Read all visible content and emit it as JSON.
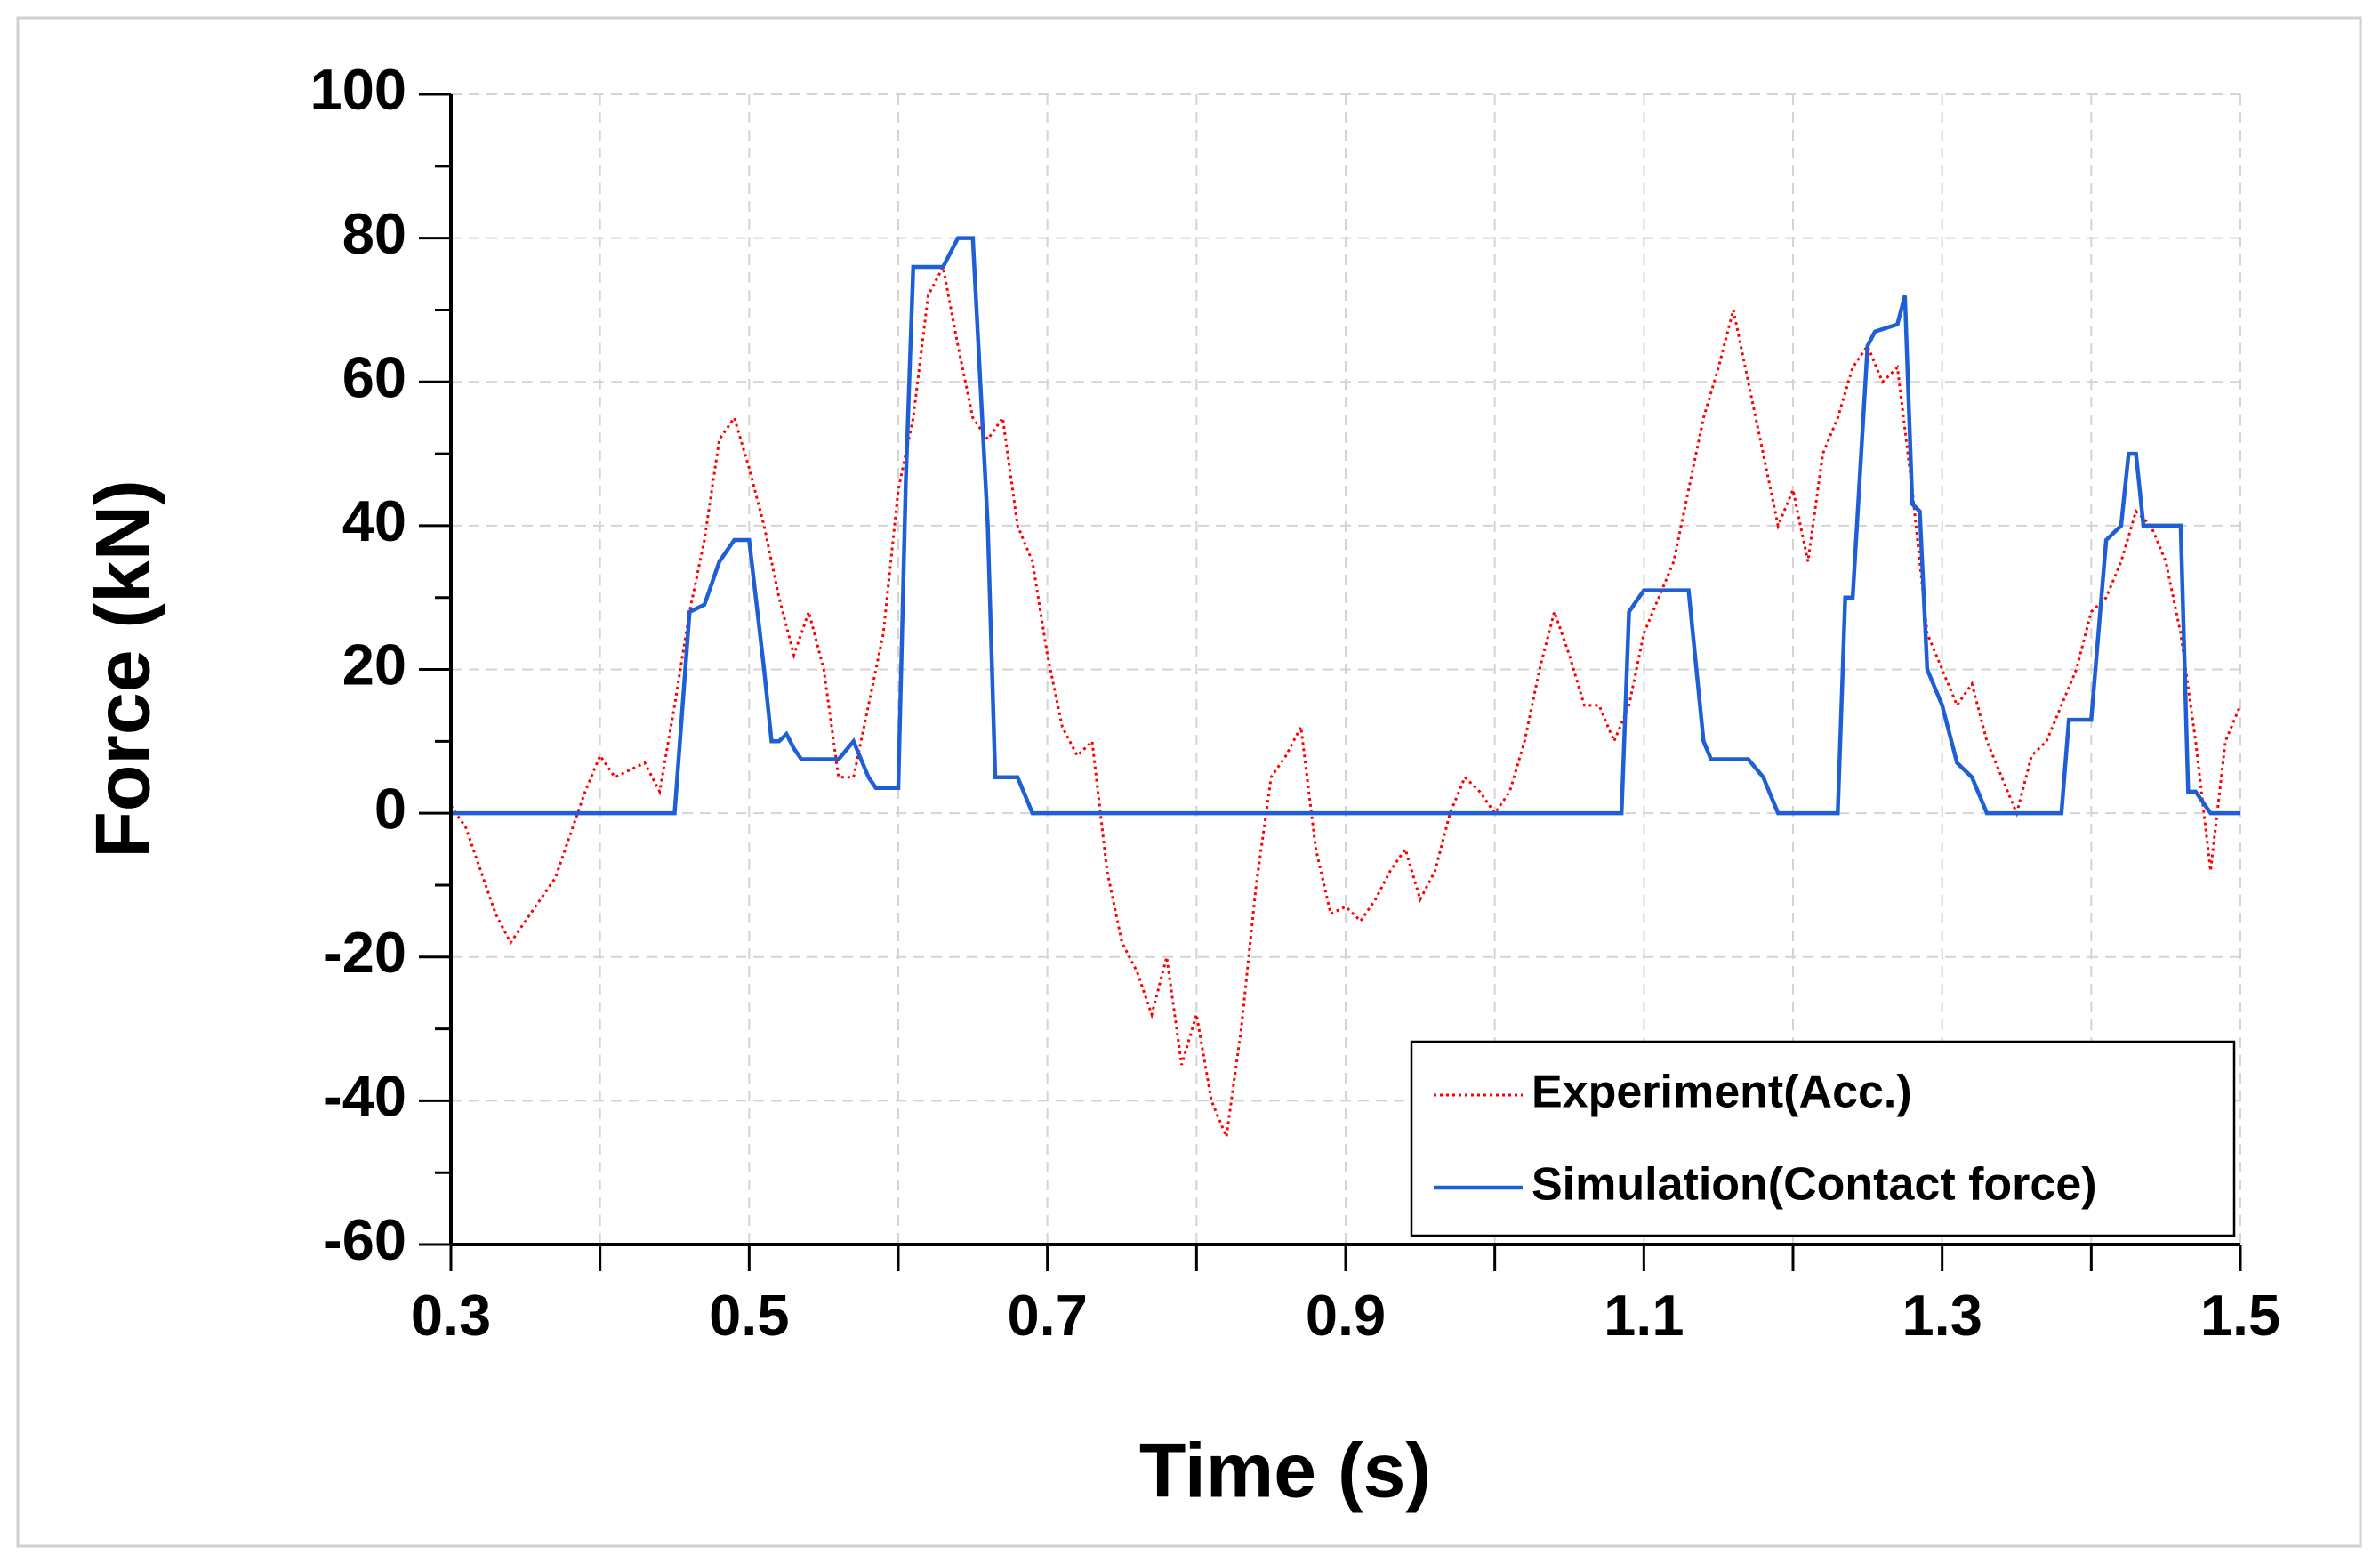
{
  "chart_data": {
    "type": "line",
    "xlabel": "Time (s)",
    "ylabel": "Force (kN)",
    "xlim": [
      0.3,
      1.5
    ],
    "xticks": [
      0.3,
      0.5,
      0.7,
      0.9,
      1.1,
      1.3,
      1.5
    ],
    "xminor_ticks": [
      0.4,
      0.6,
      0.8,
      1.0,
      1.2,
      1.4
    ],
    "ylim": [
      -60,
      100
    ],
    "yticks": [
      -60,
      -40,
      -20,
      0,
      20,
      40,
      60,
      80,
      100
    ],
    "yminor_ticks": [
      -50,
      -30,
      -10,
      10,
      30,
      50,
      70,
      90
    ],
    "grid": true,
    "legend": "lower right",
    "series": [
      {
        "name": "Experiment(Acc.)",
        "color": "#ff0000",
        "style": "dotted",
        "x": [
          0.3,
          0.31,
          0.32,
          0.33,
          0.34,
          0.35,
          0.36,
          0.37,
          0.38,
          0.39,
          0.4,
          0.41,
          0.42,
          0.43,
          0.44,
          0.45,
          0.46,
          0.47,
          0.48,
          0.49,
          0.5,
          0.51,
          0.52,
          0.53,
          0.54,
          0.55,
          0.56,
          0.57,
          0.58,
          0.59,
          0.6,
          0.61,
          0.62,
          0.63,
          0.64,
          0.65,
          0.66,
          0.67,
          0.68,
          0.69,
          0.7,
          0.71,
          0.72,
          0.73,
          0.74,
          0.75,
          0.76,
          0.77,
          0.78,
          0.79,
          0.8,
          0.81,
          0.82,
          0.83,
          0.84,
          0.85,
          0.86,
          0.87,
          0.88,
          0.89,
          0.9,
          0.91,
          0.92,
          0.93,
          0.94,
          0.95,
          0.96,
          0.97,
          0.98,
          0.99,
          1.0,
          1.01,
          1.02,
          1.03,
          1.04,
          1.05,
          1.06,
          1.07,
          1.08,
          1.09,
          1.1,
          1.11,
          1.12,
          1.13,
          1.14,
          1.15,
          1.16,
          1.17,
          1.18,
          1.19,
          1.2,
          1.21,
          1.22,
          1.23,
          1.24,
          1.25,
          1.26,
          1.27,
          1.28,
          1.29,
          1.3,
          1.31,
          1.32,
          1.33,
          1.34,
          1.35,
          1.36,
          1.37,
          1.38,
          1.39,
          1.4,
          1.41,
          1.42,
          1.43,
          1.44,
          1.45,
          1.46,
          1.47,
          1.48,
          1.49,
          1.5
        ],
        "values": [
          1,
          -2,
          -8,
          -14,
          -18,
          -15,
          -12,
          -9,
          -3,
          3,
          8,
          5,
          6,
          7,
          3,
          15,
          28,
          38,
          52,
          55,
          48,
          40,
          30,
          22,
          28,
          20,
          5,
          5,
          15,
          25,
          45,
          55,
          72,
          76,
          65,
          55,
          52,
          55,
          40,
          35,
          22,
          12,
          8,
          10,
          -8,
          -18,
          -22,
          -28,
          -20,
          -35,
          -28,
          -40,
          -45,
          -30,
          -10,
          5,
          8,
          12,
          -5,
          -14,
          -13,
          -15,
          -12,
          -8,
          -5,
          -12,
          -8,
          0,
          5,
          3,
          0,
          3,
          10,
          20,
          28,
          22,
          15,
          15,
          10,
          15,
          25,
          30,
          35,
          45,
          55,
          62,
          70,
          60,
          50,
          40,
          45,
          35,
          50,
          55,
          62,
          65,
          60,
          62,
          45,
          25,
          20,
          15,
          18,
          10,
          5,
          0,
          8,
          10,
          15,
          20,
          28,
          30,
          35,
          42,
          40,
          35,
          25,
          10,
          -8,
          10,
          15
        ]
      },
      {
        "name": "Simulation(Contact force)",
        "color": "#1f5fd6",
        "style": "solid",
        "x": [
          0.3,
          0.45,
          0.46,
          0.47,
          0.48,
          0.49,
          0.5,
          0.51,
          0.515,
          0.52,
          0.525,
          0.53,
          0.535,
          0.56,
          0.57,
          0.58,
          0.585,
          0.6,
          0.605,
          0.61,
          0.63,
          0.64,
          0.65,
          0.66,
          0.665,
          0.68,
          0.69,
          1.085,
          1.09,
          1.1,
          1.13,
          1.14,
          1.145,
          1.17,
          1.18,
          1.19,
          1.23,
          1.235,
          1.24,
          1.25,
          1.255,
          1.27,
          1.275,
          1.28,
          1.285,
          1.29,
          1.3,
          1.31,
          1.32,
          1.33,
          1.38,
          1.385,
          1.4,
          1.41,
          1.42,
          1.425,
          1.43,
          1.435,
          1.46,
          1.465,
          1.47,
          1.48,
          1.5
        ],
        "values": [
          0,
          0,
          28,
          29,
          35,
          38,
          38,
          20,
          10,
          10,
          11,
          9,
          7.5,
          7.5,
          10,
          5,
          3.5,
          3.5,
          46,
          76,
          76,
          80,
          80,
          40,
          5,
          5,
          0,
          0,
          28,
          31,
          31,
          10,
          7.5,
          7.5,
          5,
          0,
          0,
          30,
          30,
          65,
          67,
          68,
          72,
          43,
          42,
          20,
          15,
          7,
          5,
          0,
          0,
          13,
          13,
          38,
          40,
          50,
          50,
          40,
          40,
          3,
          3,
          0,
          0
        ]
      }
    ]
  }
}
